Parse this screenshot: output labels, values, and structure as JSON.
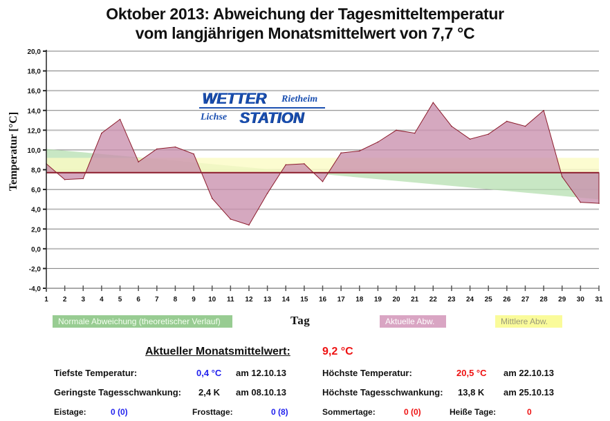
{
  "title": {
    "line1": "Oktober 2013: Abweichung der Tagesmitteltemperatur",
    "line2": "vom langjährigen Monatsmittelwert von 7,7 °C"
  },
  "logo": {
    "word1": "WETTER",
    "word2": "Rietheim",
    "word3": "Lichse",
    "word4": "STATION"
  },
  "colors": {
    "actual_fill": "#c98fad",
    "actual_line": "#8b1a2a",
    "normal_fill": "#b6dfb0",
    "mean_fill": "#fbfbc4",
    "mean_line": "#8b1a2a",
    "grid": "#bdbdbd",
    "grid_dark": "#7a7a7a",
    "blue_value": "#2222ee",
    "red_value": "#ee1111"
  },
  "chart_data": {
    "type": "area",
    "title": "Oktober 2013: Abweichung der Tagesmitteltemperatur vom langjährigen Monatsmittelwert von 7,7 °C",
    "xlabel": "Tag",
    "ylabel": "Temperatur [°C]",
    "x": [
      1,
      2,
      3,
      4,
      5,
      6,
      7,
      8,
      9,
      10,
      11,
      12,
      13,
      14,
      15,
      16,
      17,
      18,
      19,
      20,
      21,
      22,
      23,
      24,
      25,
      26,
      27,
      28,
      29,
      30,
      31
    ],
    "xlim": [
      1,
      31
    ],
    "ylim": [
      -4,
      20
    ],
    "yticks": [
      -4,
      -2,
      0,
      2,
      4,
      6,
      8,
      10,
      12,
      14,
      16,
      18,
      20
    ],
    "ytick_labels": [
      "-4,0",
      "-2,0",
      "0,0",
      "2,0",
      "4,0",
      "6,0",
      "8,0",
      "10,0",
      "12,0",
      "14,0",
      "16,0",
      "18,0",
      "20,0"
    ],
    "xtick_labels": [
      "1",
      "2",
      "3",
      "4",
      "5",
      "6",
      "7",
      "8",
      "9",
      "10",
      "11",
      "12",
      "13",
      "14",
      "15",
      "16",
      "17",
      "18",
      "19",
      "20",
      "21",
      "22",
      "23",
      "24",
      "25",
      "26",
      "27",
      "28",
      "29",
      "30",
      "31"
    ],
    "grid": true,
    "baseline": 7.7,
    "series": [
      {
        "name": "Aktuelle Abw.",
        "type": "area-from-baseline",
        "values": [
          8.6,
          7.0,
          7.1,
          11.7,
          13.1,
          8.8,
          10.1,
          10.3,
          9.6,
          5.1,
          3.0,
          2.4,
          5.6,
          8.5,
          8.6,
          6.8,
          9.7,
          9.9,
          10.8,
          12.0,
          11.7,
          14.8,
          12.4,
          11.1,
          11.6,
          12.9,
          12.4,
          14.0,
          7.3,
          4.7,
          4.6
        ]
      },
      {
        "name": "Normale Abweichung (theoretischer Verlauf)",
        "type": "area-from-baseline",
        "start": 10.1,
        "end": 5.0
      },
      {
        "name": "Mittlere Abw.",
        "type": "band",
        "from": 7.7,
        "to": 9.2
      }
    ],
    "legend": [
      {
        "label": "Normale Abweichung (theoretischer Verlauf)",
        "position": "bottom-left"
      },
      {
        "label": "Aktuelle Abw.",
        "position": "bottom-center"
      },
      {
        "label": "Mittlere Abw.",
        "position": "bottom-right"
      }
    ]
  },
  "stats": {
    "mean_label": "Aktueller Monatsmittelwert:",
    "mean_value": "9,2 °C",
    "min_temp_label": "Tiefste Temperatur:",
    "min_temp_value": "0,4 °C",
    "min_temp_date": "am 12.10.13",
    "max_temp_label": "Höchste Temperatur:",
    "max_temp_value": "20,5 °C",
    "max_temp_date": "am 22.10.13",
    "min_range_label": "Geringste Tagesschwankung:",
    "min_range_value": "2,4 K",
    "min_range_date": "am 08.10.13",
    "max_range_label": "Höchste Tagesschwankung:",
    "max_range_value": "13,8 K",
    "max_range_date": "am 25.10.13",
    "ice_days_label": "Eistage:",
    "ice_days_value": "0 (0)",
    "frost_days_label": "Frosttage:",
    "frost_days_value": "0 (8)",
    "summer_days_label": "Sommertage:",
    "summer_days_value": "0 (0)",
    "hot_days_label": "Heiße Tage:",
    "hot_days_value": "0"
  }
}
